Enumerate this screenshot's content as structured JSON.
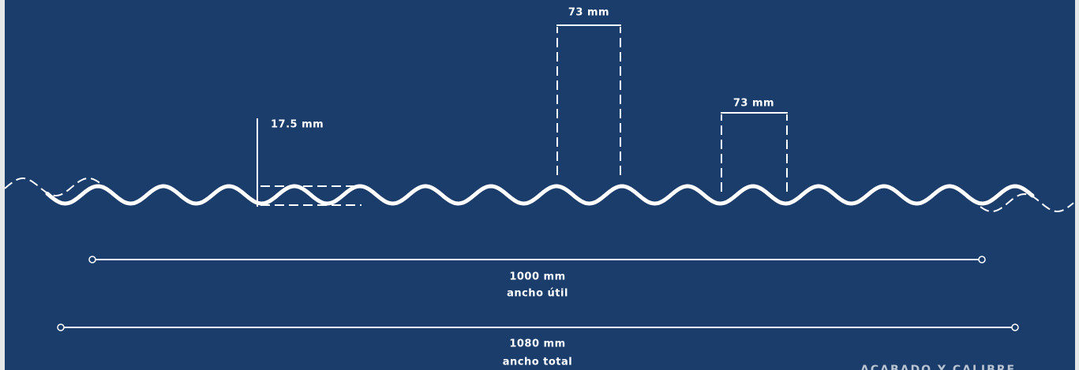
{
  "height_label": "17.5 mm",
  "pitches": [
    "73 mm",
    "73 mm"
  ],
  "widths": [
    {
      "measure": "1000 mm",
      "caption": "ancho útil"
    },
    {
      "measure": "1080 mm",
      "caption": "ancho total"
    }
  ],
  "section_title": "ACABADO Y CALIBRE"
}
